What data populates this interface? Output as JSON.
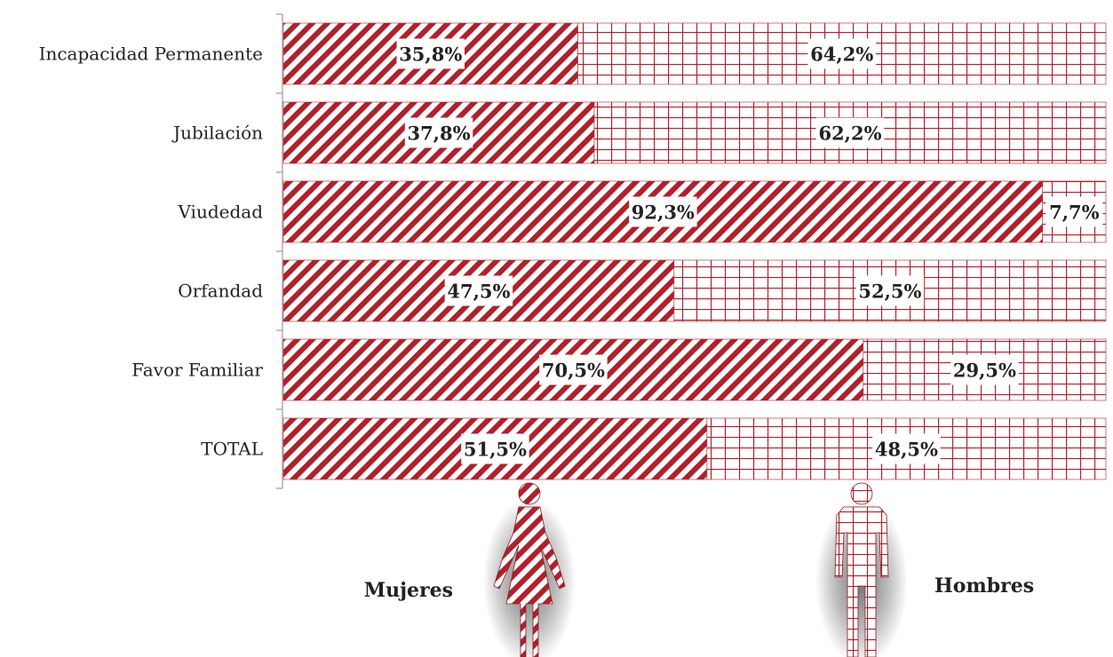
{
  "chart_data": {
    "type": "bar",
    "orientation": "horizontal",
    "stacked": true,
    "categories": [
      "Incapacidad Permanente",
      "Jubilación",
      "Viudedad",
      "Orfandad",
      "Favor Familiar",
      "TOTAL"
    ],
    "series": [
      {
        "name": "Mujeres",
        "values": [
          35.8,
          37.8,
          92.3,
          47.5,
          70.5,
          51.5
        ],
        "labels": [
          "35,8%",
          "37,8%",
          "92,3%",
          "47,5%",
          "70,5%",
          "51,5%"
        ]
      },
      {
        "name": "Hombres",
        "values": [
          64.2,
          62.2,
          7.7,
          52.5,
          29.5,
          48.5
        ],
        "labels": [
          "64,2%",
          "62,2%",
          "7,7%",
          "52,5%",
          "29,5%",
          "48,5%"
        ]
      }
    ],
    "xlim": [
      0,
      100
    ],
    "legend": "bottom",
    "grid": false,
    "colors": {
      "accent": "#b0202b",
      "background": "#ffffff"
    },
    "patterns": {
      "Mujeres": "diagonal-stripes",
      "Hombres": "grid"
    },
    "icons": {
      "Mujeres": "woman-figure-icon",
      "Hombres": "man-figure-icon"
    }
  }
}
